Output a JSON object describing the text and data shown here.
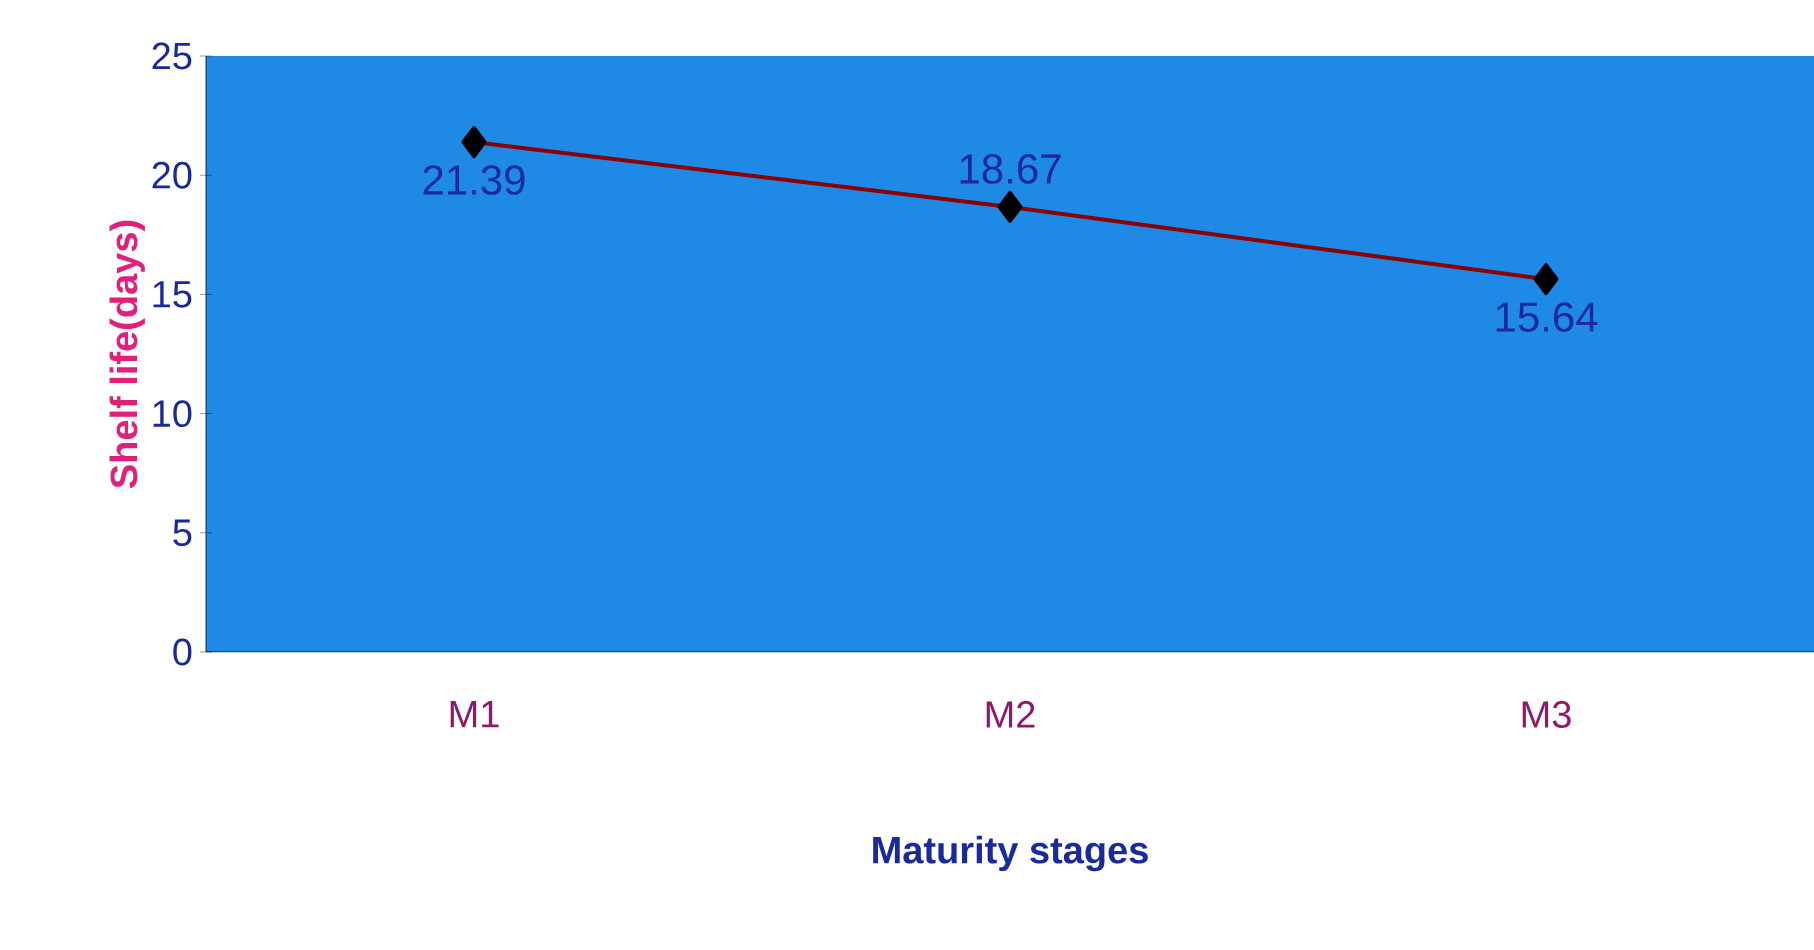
{
  "chart_data": {
    "type": "line",
    "xlabel": "Maturity stages",
    "ylabel": "Shelf life(days)",
    "categories": [
      "M1",
      "M2",
      "M3"
    ],
    "series": [
      {
        "color": "#8b0000",
        "values": [
          21.39,
          18.67,
          15.64
        ]
      }
    ],
    "ylim": [
      0,
      25
    ],
    "yticks": [
      0,
      5,
      10,
      15,
      20,
      25
    ],
    "marker": "diamond",
    "line_style": "solid",
    "data_labels": true,
    "grid": false
  }
}
